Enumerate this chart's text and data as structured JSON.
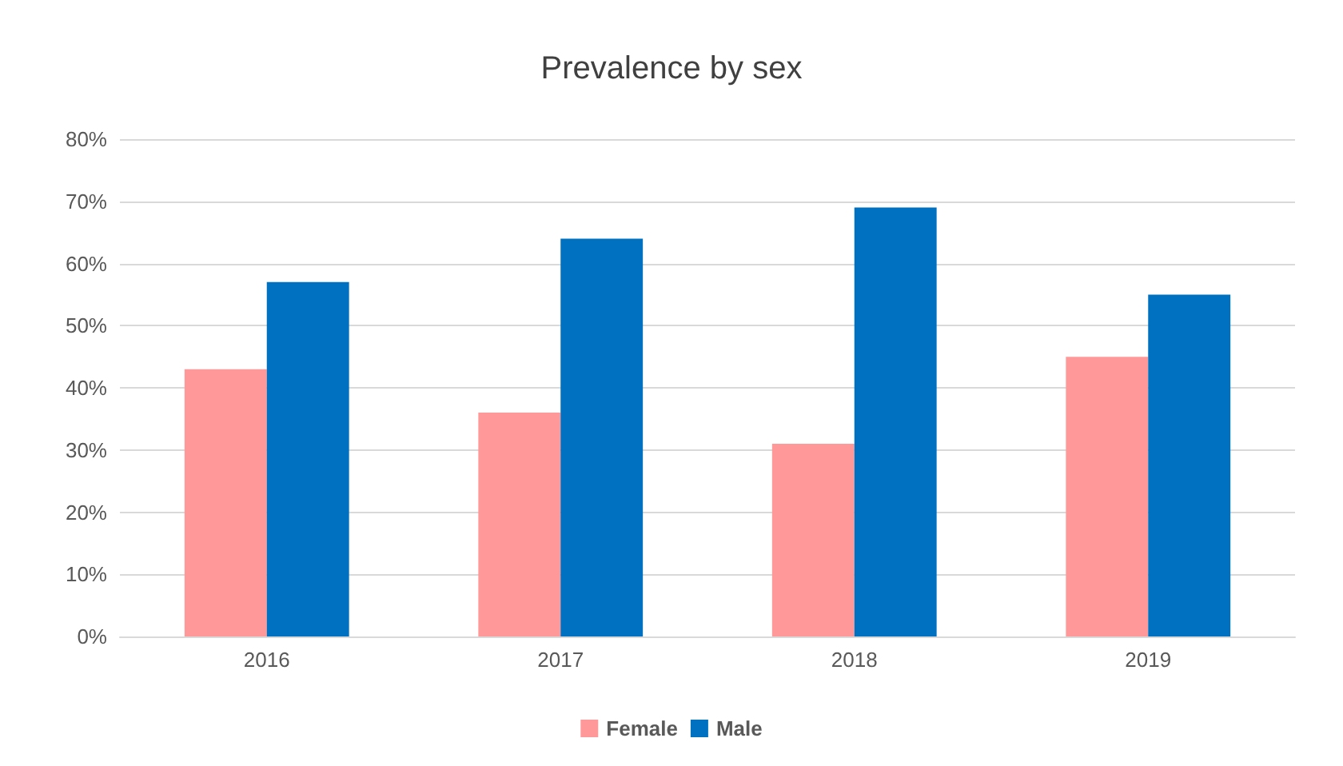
{
  "chart_data": {
    "type": "bar",
    "title": "Prevalence by sex",
    "categories": [
      "2016",
      "2017",
      "2018",
      "2019"
    ],
    "series": [
      {
        "name": "Female",
        "color": "#ff9999",
        "values": [
          43,
          36,
          31,
          45
        ]
      },
      {
        "name": "Male",
        "color": "#0070c0",
        "values": [
          57,
          64,
          69,
          55
        ]
      }
    ],
    "ylim": [
      0,
      80
    ],
    "yticks": [
      {
        "value": 0,
        "label": "0%"
      },
      {
        "value": 10,
        "label": "10%"
      },
      {
        "value": 20,
        "label": "20%"
      },
      {
        "value": 30,
        "label": "30%"
      },
      {
        "value": 40,
        "label": "40%"
      },
      {
        "value": 50,
        "label": "50%"
      },
      {
        "value": 60,
        "label": "60%"
      },
      {
        "value": 70,
        "label": "70%"
      },
      {
        "value": 80,
        "label": "80%"
      }
    ],
    "grid": "y",
    "legend": "bottom"
  }
}
